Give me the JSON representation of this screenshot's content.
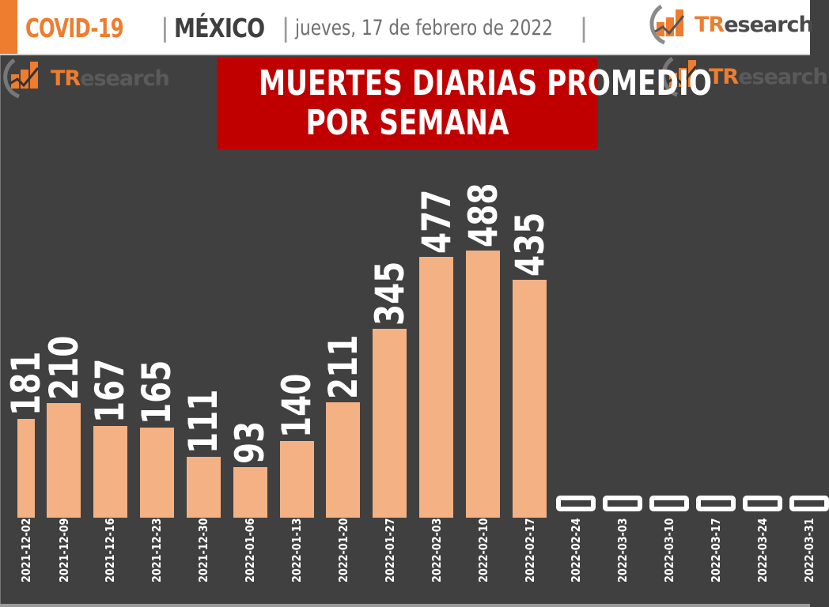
{
  "header": {
    "topic": "COVID-19",
    "separator": "|",
    "country": "MÉXICO",
    "date": "jueves, 17 de febrero de 2022",
    "date_trailing_separator": "|",
    "accent_color": "#ee7d2f"
  },
  "logos": {
    "brand_tr": "TR",
    "brand_rest": "esearch"
  },
  "title": {
    "line1": "MUERTES DIARIAS PROMEDIO",
    "line2": "POR SEMANA",
    "background_color": "#c00000"
  },
  "chart_data": {
    "type": "bar",
    "title": "MUERTES DIARIAS PROMEDIO POR SEMANA",
    "xlabel": "",
    "ylabel": "",
    "grid": false,
    "legend": null,
    "bar_color": "#f4b183",
    "background_color": "#404040",
    "categories": [
      "2021-12-02",
      "2021-12-09",
      "2021-12-16",
      "2021-12-23",
      "2021-12-30",
      "2022-01-06",
      "2022-01-13",
      "2022-01-20",
      "2022-01-27",
      "2022-02-03",
      "2022-02-10",
      "2022-02-17",
      "2022-02-24",
      "2022-03-03",
      "2022-03-10",
      "2022-03-17",
      "2022-03-24",
      "2022-03-31"
    ],
    "values": [
      181,
      210,
      167,
      165,
      111,
      93,
      140,
      211,
      345,
      477,
      488,
      435,
      0,
      0,
      0,
      0,
      0,
      0
    ],
    "labels": [
      "181",
      "210",
      "167",
      "165",
      "111",
      "93",
      "140",
      "211",
      "345",
      "477",
      "488",
      "435",
      "0",
      "0",
      "0",
      "0",
      "0",
      "0"
    ],
    "ylim": [
      0,
      600
    ]
  }
}
